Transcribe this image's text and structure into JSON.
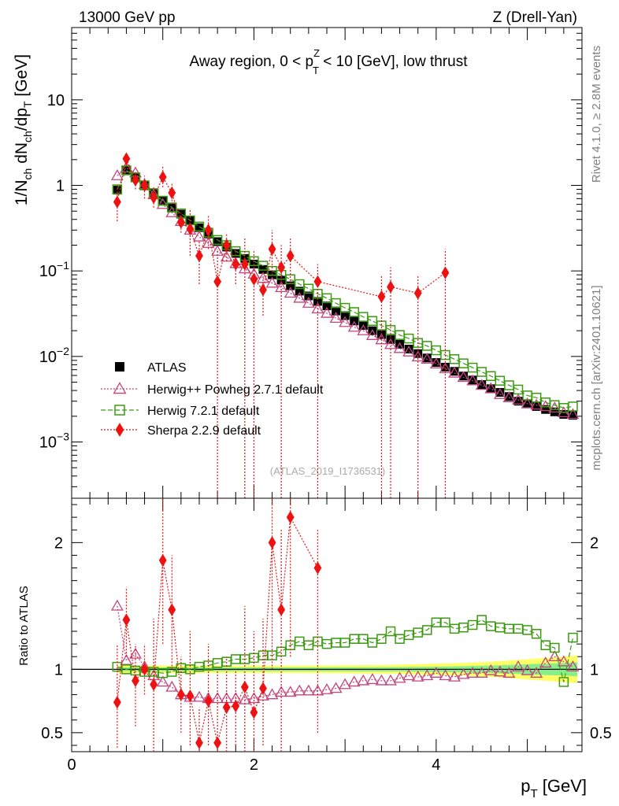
{
  "header": {
    "left": "13000 GeV pp",
    "right": "Z (Drell-Yan)"
  },
  "side_labels": {
    "rivet": "Rivet 4.1.0, ≥ 2.8M events",
    "mcplots": "mcplots.cern.ch [arXiv:2401.10621]"
  },
  "watermark": "(ATLAS_2019_I1736531)",
  "colors": {
    "data": "#000000",
    "herwigpp": "#c2457e",
    "herwig7": "#3a9a10",
    "sherpa": "#ee1111",
    "band_inner": "#88ee88",
    "band_outer": "#ffff66"
  },
  "chart_data": [
    {
      "type": "scatter",
      "panel": "main",
      "title_parts": {
        "pre": "Away region, 0 < p",
        "sup": "Z",
        "sub": "T",
        "post": " < 10 [GeV], low thrust"
      },
      "ylabel": "1/N_ch dN_ch/dp_T [GeV]",
      "ylabel_parts": {
        "a": "1/N",
        "b": "ch",
        "c": " dN",
        "d": "ch",
        "e": "/dp",
        "f": "T",
        "g": " [GeV]"
      },
      "yscale": "log",
      "ylim": [
        0.00022,
        70
      ],
      "xlim": [
        0,
        5.6
      ],
      "y_ticks": [
        {
          "v": 10,
          "base": "10",
          "exp": ""
        },
        {
          "v": 1,
          "base": "1",
          "exp": ""
        },
        {
          "v": 0.1,
          "base": "10",
          "exp": "−1"
        },
        {
          "v": 0.01,
          "base": "10",
          "exp": "−2"
        },
        {
          "v": 0.001,
          "base": "10",
          "exp": "−3"
        }
      ],
      "legend": [
        {
          "key": "data",
          "label": "ATLAS"
        },
        {
          "key": "herwigpp",
          "label": "Herwig++ Powheg 2.7.1 default"
        },
        {
          "key": "herwig7",
          "label": "Herwig 7.2.1 default"
        },
        {
          "key": "sherpa",
          "label": "Sherpa 2.2.9 default"
        }
      ],
      "x": [
        0.5,
        0.6,
        0.7,
        0.8,
        0.9,
        1.0,
        1.1,
        1.2,
        1.3,
        1.4,
        1.5,
        1.6,
        1.7,
        1.8,
        1.9,
        2.0,
        2.1,
        2.2,
        2.3,
        2.4,
        2.5,
        2.6,
        2.7,
        2.8,
        2.9,
        3.0,
        3.1,
        3.2,
        3.3,
        3.4,
        3.5,
        3.6,
        3.7,
        3.8,
        3.9,
        4.0,
        4.1,
        4.2,
        4.3,
        4.4,
        4.5,
        4.6,
        4.7,
        4.8,
        4.9,
        5.0,
        5.1,
        5.2,
        5.3,
        5.4,
        5.5
      ],
      "series": [
        {
          "key": "data",
          "name": "ATLAS",
          "values": [
            0.88,
            1.5,
            1.25,
            1.0,
            0.82,
            0.67,
            0.56,
            0.46,
            0.39,
            0.32,
            0.27,
            0.22,
            0.19,
            0.16,
            0.14,
            0.12,
            0.104,
            0.09,
            0.078,
            0.067,
            0.058,
            0.051,
            0.044,
            0.039,
            0.034,
            0.03,
            0.026,
            0.023,
            0.02,
            0.018,
            0.0158,
            0.0139,
            0.0122,
            0.0108,
            0.0096,
            0.0085,
            0.0075,
            0.0067,
            0.0059,
            0.0053,
            0.0047,
            0.0042,
            0.0038,
            0.0034,
            0.003,
            0.0028,
            0.0026,
            0.0024,
            0.00225,
            0.0021,
            0.00205
          ]
        },
        {
          "key": "herwigpp",
          "name": "Herwig++ Powheg 2.7.1 default",
          "values": [
            1.3,
            1.6,
            1.4,
            1.02,
            0.78,
            0.6,
            0.48,
            0.38,
            0.3,
            0.25,
            0.21,
            0.17,
            0.145,
            0.122,
            0.106,
            0.092,
            0.082,
            0.072,
            0.064,
            0.055,
            0.048,
            0.042,
            0.036,
            0.032,
            0.028,
            0.025,
            0.022,
            0.02,
            0.0176,
            0.0157,
            0.0138,
            0.0124,
            0.0113,
            0.0099,
            0.0093,
            0.0082,
            0.0072,
            0.0064,
            0.0057,
            0.0052,
            0.0046,
            0.0042,
            0.0036,
            0.0033,
            0.0031,
            0.0028,
            0.0027,
            0.0026,
            0.0025,
            0.0022,
            0.0021
          ]
        },
        {
          "key": "herwig7",
          "name": "Herwig 7.2.1 default",
          "values": [
            0.9,
            1.5,
            1.24,
            1.0,
            0.81,
            0.66,
            0.55,
            0.47,
            0.39,
            0.33,
            0.28,
            0.23,
            0.2,
            0.17,
            0.15,
            0.13,
            0.115,
            0.1,
            0.09,
            0.08,
            0.07,
            0.062,
            0.054,
            0.048,
            0.042,
            0.037,
            0.033,
            0.029,
            0.026,
            0.023,
            0.0204,
            0.0178,
            0.0162,
            0.0144,
            0.0133,
            0.0118,
            0.0104,
            0.0093,
            0.0083,
            0.0074,
            0.0066,
            0.0059,
            0.0052,
            0.0046,
            0.0041,
            0.0035,
            0.0033,
            0.0029,
            0.0027,
            0.0025,
            0.0026
          ]
        },
        {
          "key": "sherpa",
          "name": "Sherpa 2.2.9 default",
          "x": [
            0.5,
            0.6,
            0.7,
            0.8,
            0.9,
            1.0,
            1.1,
            1.2,
            1.3,
            1.4,
            1.5,
            1.6,
            1.7,
            1.8,
            1.9,
            2.0,
            2.1,
            2.2,
            2.3,
            2.4,
            2.7,
            3.4,
            3.5,
            3.8,
            4.1
          ],
          "values": [
            0.64,
            2.05,
            1.15,
            1.0,
            0.72,
            1.25,
            0.82,
            0.37,
            0.31,
            0.15,
            0.3,
            0.075,
            0.2,
            0.12,
            0.12,
            0.08,
            0.06,
            0.18,
            0.11,
            0.15,
            0.075,
            0.05,
            0.065,
            0.055,
            0.095
          ],
          "err_lo": [
            0.38,
            1.7,
            0.9,
            0.7,
            0.55,
            0.95,
            0.6,
            0.28,
            0.15,
            0.07,
            0.18,
            0.0002,
            0.13,
            0.07,
            0.0002,
            0.0002,
            0.03,
            0.09,
            0.0002,
            0.07,
            0.0002,
            0.0002,
            0.0002,
            0.0002,
            0.0002
          ],
          "err_hi": [
            1.0,
            2.35,
            1.45,
            1.3,
            0.95,
            1.7,
            1.05,
            0.48,
            0.52,
            0.22,
            0.45,
            0.18,
            0.28,
            0.17,
            0.25,
            0.17,
            0.09,
            0.3,
            0.2,
            0.24,
            0.12,
            0.09,
            0.11,
            0.09,
            0.18
          ]
        }
      ]
    },
    {
      "type": "scatter",
      "panel": "ratio",
      "ylabel": "Ratio to ATLAS",
      "xlabel": "p_T [GeV]",
      "xlabel_parts": {
        "a": "p",
        "b": "T",
        "c": " [GeV]"
      },
      "xlim": [
        0,
        5.6
      ],
      "ylim": [
        0.35,
        2.35
      ],
      "x_ticks": [
        0,
        2,
        4
      ],
      "y_ticks": [
        0.5,
        1,
        2
      ],
      "band_inner": [
        0.5,
        1.0,
        1.5,
        2.0,
        2.5,
        3.0,
        3.5,
        4.0,
        4.3,
        4.6,
        4.8,
        5.0,
        5.2,
        5.4,
        5.55
      ],
      "band_inner_half": [
        0.015,
        0.015,
        0.015,
        0.015,
        0.015,
        0.016,
        0.017,
        0.02,
        0.025,
        0.03,
        0.035,
        0.04,
        0.045,
        0.05,
        0.055
      ],
      "band_outer_half": [
        0.03,
        0.03,
        0.03,
        0.03,
        0.03,
        0.032,
        0.035,
        0.045,
        0.05,
        0.06,
        0.07,
        0.08,
        0.09,
        0.1,
        0.11
      ],
      "series": [
        {
          "key": "herwigpp",
          "name": "Herwig++ Powheg 2.7.1 default",
          "values": [
            1.5,
            1.07,
            1.12,
            1.02,
            0.95,
            0.9,
            0.86,
            0.8,
            0.78,
            0.78,
            0.77,
            0.77,
            0.77,
            0.77,
            0.76,
            0.77,
            0.79,
            0.8,
            0.82,
            0.82,
            0.83,
            0.83,
            0.83,
            0.84,
            0.85,
            0.88,
            0.9,
            0.91,
            0.92,
            0.91,
            0.91,
            0.93,
            0.95,
            0.94,
            0.95,
            0.97,
            0.95,
            0.94,
            0.96,
            0.97,
            0.97,
            0.99,
            0.98,
            0.97,
            1.02,
            0.99,
            0.97,
            1.05,
            1.1,
            1.06,
            1.02
          ]
        },
        {
          "key": "herwig7",
          "name": "Herwig 7.2.1 default",
          "values": [
            1.02,
            1.0,
            0.99,
            0.98,
            0.98,
            0.97,
            0.98,
            1.01,
            1.0,
            1.02,
            1.03,
            1.05,
            1.06,
            1.08,
            1.08,
            1.09,
            1.11,
            1.11,
            1.14,
            1.19,
            1.22,
            1.19,
            1.22,
            1.2,
            1.21,
            1.21,
            1.24,
            1.24,
            1.21,
            1.24,
            1.3,
            1.24,
            1.27,
            1.29,
            1.31,
            1.37,
            1.37,
            1.32,
            1.33,
            1.35,
            1.39,
            1.34,
            1.33,
            1.32,
            1.32,
            1.31,
            1.28,
            1.19,
            1.17,
            0.9,
            1.25
          ]
        },
        {
          "key": "sherpa",
          "name": "Sherpa 2.2.9 default",
          "x": [
            0.5,
            0.6,
            0.7,
            0.8,
            0.9,
            1.0,
            1.1,
            1.2,
            1.3,
            1.4,
            1.5,
            1.6,
            1.7,
            1.8,
            1.9,
            2.0,
            2.1,
            2.2,
            2.3,
            2.4,
            2.7
          ],
          "values": [
            0.74,
            1.39,
            0.91,
            1.0,
            0.88,
            1.86,
            1.47,
            0.8,
            0.79,
            0.42,
            0.75,
            0.42,
            0.7,
            0.71,
            0.86,
            0.66,
            0.85,
            2.0,
            1.47,
            2.2,
            1.8
          ],
          "err_lo": [
            0.38,
            1.1,
            0.55,
            0.8,
            0.35,
            1.2,
            1.0,
            0.5,
            0.4,
            0.2,
            0.4,
            0.1,
            0.3,
            0.4,
            0.2,
            0.2,
            0.4,
            1.0,
            0.2,
            1.1,
            0.5
          ],
          "err_hi": [
            1.2,
            1.65,
            1.2,
            1.2,
            1.4,
            2.4,
            1.9,
            1.1,
            1.3,
            0.7,
            1.2,
            1.0,
            1.1,
            1.0,
            1.5,
            1.3,
            1.4,
            2.35,
            2.1,
            2.35,
            2.1
          ]
        }
      ]
    }
  ]
}
